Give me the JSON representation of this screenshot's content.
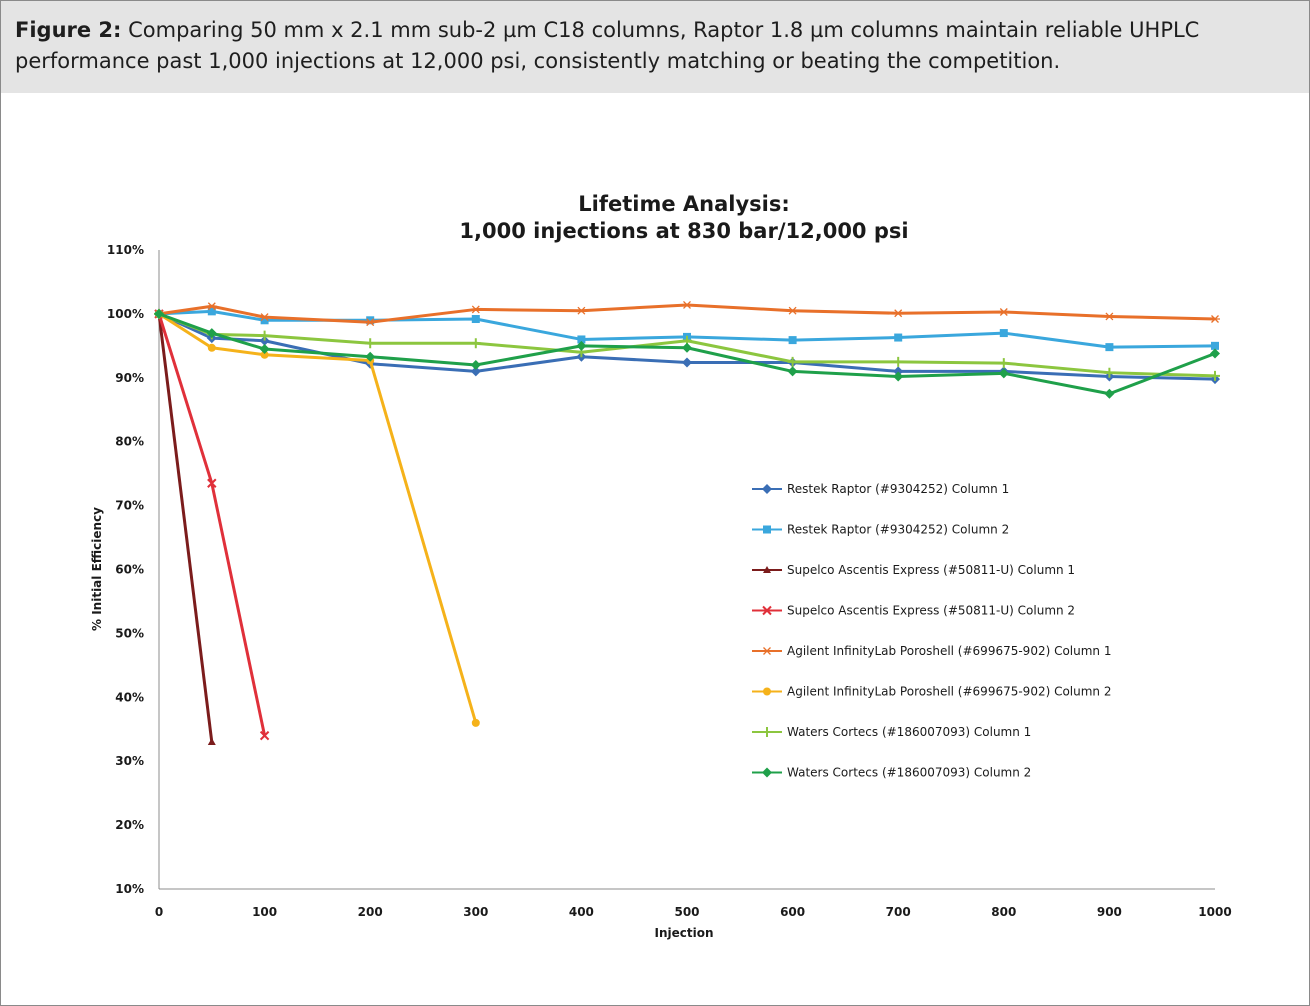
{
  "caption": {
    "label": "Figure 2:",
    "text": " Comparing 50 mm x 2.1 mm sub-2 µm C18 columns, Raptor 1.8 µm columns maintain reliable UHPLC performance past 1,000 injections at 12,000 psi, consistently matching or beating the competition."
  },
  "chart_data": {
    "type": "line",
    "title": [
      "Lifetime Analysis:",
      "1,000 injections at 830 bar/12,000 psi"
    ],
    "xlabel": "Injection",
    "ylabel": "% Initial Efficiency",
    "xlim": [
      0,
      1000
    ],
    "ylim": [
      10,
      110
    ],
    "xticks": [
      0,
      100,
      200,
      300,
      400,
      500,
      600,
      700,
      800,
      900,
      1000
    ],
    "yticks": [
      10,
      20,
      30,
      40,
      50,
      60,
      70,
      80,
      90,
      100,
      110
    ],
    "ytick_labels": [
      "10%",
      "20%",
      "30%",
      "40%",
      "50%",
      "60%",
      "70%",
      "80%",
      "90%",
      "100%",
      "110%"
    ],
    "grid": false,
    "legend_position": "right",
    "series": [
      {
        "name": "Restek Raptor (#9304252) Column 1",
        "color": "#3a6eb5",
        "marker": "diamond",
        "x": [
          0,
          50,
          100,
          200,
          300,
          400,
          500,
          600,
          700,
          800,
          900,
          1000
        ],
        "y": [
          100,
          96.2,
          95.8,
          92.2,
          91.0,
          93.3,
          92.4,
          92.4,
          91.0,
          91.0,
          90.2,
          89.8
        ]
      },
      {
        "name": "Restek Raptor (#9304252) Column 2",
        "color": "#3aa7dd",
        "marker": "square",
        "x": [
          0,
          50,
          100,
          200,
          300,
          400,
          500,
          600,
          700,
          800,
          900,
          1000
        ],
        "y": [
          100,
          100.4,
          99.0,
          99.0,
          99.2,
          96.0,
          96.4,
          95.9,
          96.3,
          97.0,
          94.8,
          95.0
        ]
      },
      {
        "name": "Supelco Ascentis Express (#50811-U) Column 1",
        "color": "#7b1c1c",
        "marker": "triangle",
        "x": [
          0,
          50
        ],
        "y": [
          100,
          33.0
        ]
      },
      {
        "name": "Supelco Ascentis Express (#50811-U) Column 2",
        "color": "#e0303a",
        "marker": "x",
        "x": [
          0,
          50,
          100
        ],
        "y": [
          100,
          73.5,
          34.0
        ]
      },
      {
        "name": "Agilent InfinityLab Poroshell (#699675-902) Column 1",
        "color": "#e8702a",
        "marker": "star",
        "x": [
          0,
          50,
          100,
          200,
          300,
          400,
          500,
          600,
          700,
          800,
          900,
          1000
        ],
        "y": [
          100,
          101.2,
          99.5,
          98.7,
          100.7,
          100.5,
          101.4,
          100.5,
          100.1,
          100.3,
          99.6,
          99.2
        ]
      },
      {
        "name": "Agilent InfinityLab Poroshell (#699675-902) Column 2",
        "color": "#f5b21a",
        "marker": "circle",
        "x": [
          0,
          50,
          100,
          200,
          300
        ],
        "y": [
          100,
          94.7,
          93.6,
          92.7,
          36.0
        ]
      },
      {
        "name": "Waters Cortecs (#186007093) Column 1",
        "color": "#8cc63f",
        "marker": "plus",
        "x": [
          0,
          50,
          100,
          200,
          300,
          400,
          500,
          600,
          700,
          800,
          900,
          1000
        ],
        "y": [
          100,
          96.8,
          96.6,
          95.4,
          95.4,
          94.0,
          95.8,
          92.5,
          92.5,
          92.3,
          90.8,
          90.3
        ]
      },
      {
        "name": "Waters Cortecs (#186007093) Column 2",
        "color": "#1fa04a",
        "marker": "diamond",
        "x": [
          0,
          50,
          100,
          200,
          300,
          400,
          500,
          600,
          700,
          800,
          900,
          1000
        ],
        "y": [
          100,
          97.0,
          94.5,
          93.3,
          92.0,
          95.0,
          94.7,
          91.0,
          90.2,
          90.7,
          87.5,
          93.8
        ]
      }
    ]
  }
}
